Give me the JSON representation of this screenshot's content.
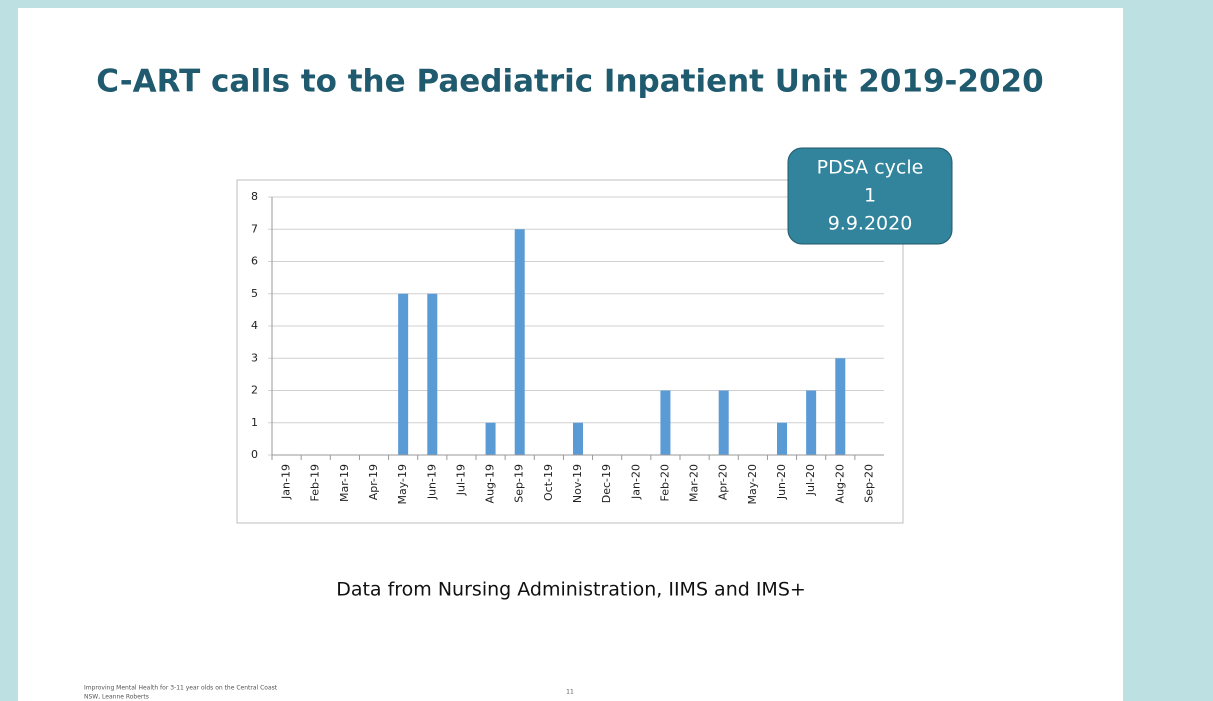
{
  "chart_data": {
    "type": "bar",
    "title": "C-ART calls to the Paediatric Inpatient Unit 2019-2020",
    "categories": [
      "Jan-19",
      "Feb-19",
      "Mar-19",
      "Apr-19",
      "May-19",
      "Jun-19",
      "Jul-19",
      "Aug-19",
      "Sep-19",
      "Oct-19",
      "Nov-19",
      "Dec-19",
      "Jan-20",
      "Feb-20",
      "Mar-20",
      "Apr-20",
      "May-20",
      "Jun-20",
      "Jul-20",
      "Aug-20",
      "Sep-20"
    ],
    "values": [
      0,
      0,
      0,
      0,
      5,
      5,
      0,
      1,
      7,
      0,
      1,
      0,
      0,
      2,
      0,
      2,
      0,
      1,
      2,
      3,
      0
    ],
    "color": "#5b9bd5",
    "ylim": [
      0,
      8
    ],
    "yticks": [
      0,
      1,
      2,
      3,
      4,
      5,
      6,
      7,
      8
    ],
    "grid": true,
    "annotation": [
      "PDSA cycle",
      "1",
      "9.9.2020"
    ],
    "caption": "Data from Nursing Administration, IIMS and IMS+",
    "footer": [
      "Improving Mental Health for 3-11 year olds on the Central Coast",
      "NSW, Leanne Roberts"
    ],
    "page_number": "11"
  }
}
